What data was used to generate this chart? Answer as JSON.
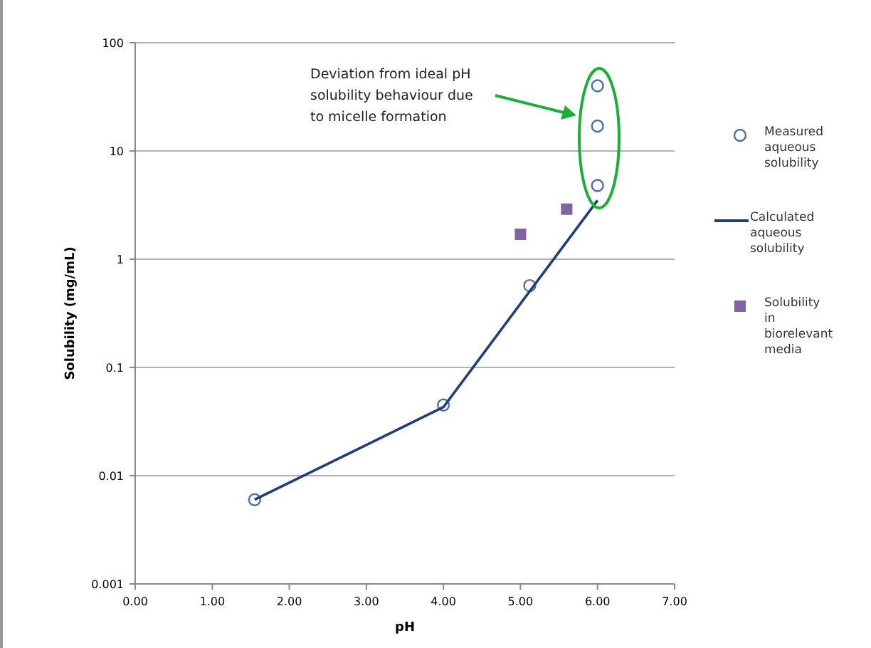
{
  "chart_data": {
    "type": "scatter",
    "xlabel": "pH",
    "ylabel": "Solubility (mg/mL)",
    "log": "y",
    "grid": "y",
    "legend": "right",
    "xlim": [
      0,
      7
    ],
    "xticks": [
      {
        "value": 0,
        "label": "0.00"
      },
      {
        "value": 1,
        "label": "1.00"
      },
      {
        "value": 2,
        "label": "2.00"
      },
      {
        "value": 3,
        "label": "3.00"
      },
      {
        "value": 4,
        "label": "4.00"
      },
      {
        "value": 5,
        "label": "5.00"
      },
      {
        "value": 6,
        "label": "6.00"
      },
      {
        "value": 7,
        "label": "7.00"
      }
    ],
    "ylim": [
      0.001,
      100
    ],
    "yticks": [
      0.001,
      0.01,
      0.1,
      1,
      10,
      100
    ],
    "series": [
      {
        "name": "Measured aqueous solubility",
        "marker": "circle",
        "color": "#4f6fa8",
        "x": [
          1.55,
          4.0,
          5.12,
          6.0,
          6.0,
          6.0
        ],
        "values": [
          0.006,
          0.045,
          0.57,
          4.8,
          17,
          40
        ]
      },
      {
        "name": "Calculated aqueous solubility",
        "type": "line",
        "marker": "none",
        "color": "#1f3f7a",
        "x": [
          1.55,
          4.0,
          6.0
        ],
        "values": [
          0.006,
          0.043,
          3.5
        ]
      },
      {
        "name": "Solubility in biorelevant media",
        "marker": "square",
        "color": "#8064a2",
        "x": [
          5.0,
          5.6
        ],
        "values": [
          1.7,
          2.9
        ]
      }
    ],
    "annotations": [
      "Deviation from ideal pH solubility behaviour due to micelle formation"
    ]
  }
}
